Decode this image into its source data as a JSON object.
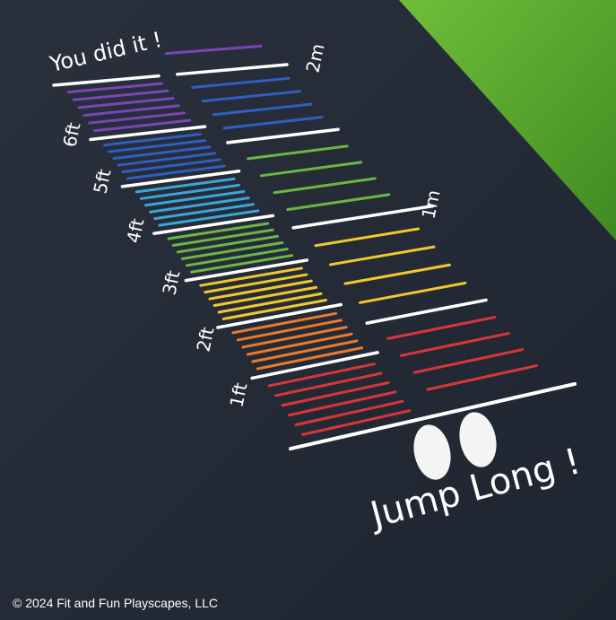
{
  "markings": {
    "finish_text": "You did it !",
    "start_text": "Jump Long !",
    "feet_labels": [
      "1ft",
      "2ft",
      "3ft",
      "4ft",
      "5ft",
      "6ft"
    ],
    "metre_labels": [
      "1m",
      "2m"
    ]
  },
  "footer": {
    "copyright": "© 2024 Fit and Fun Playscapes, LLC"
  }
}
